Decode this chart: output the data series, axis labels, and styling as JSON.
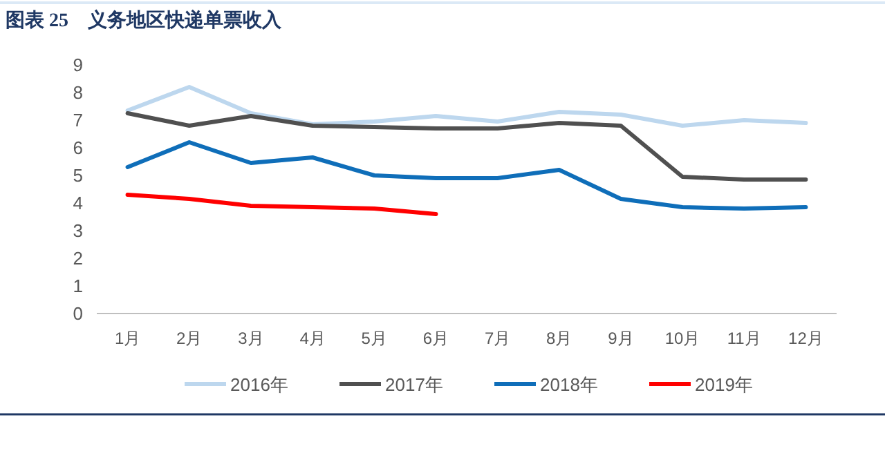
{
  "chart_data": {
    "type": "line",
    "title": "图表 25　义务地区快递单票收入",
    "categories": [
      "1月",
      "2月",
      "3月",
      "4月",
      "5月",
      "6月",
      "7月",
      "8月",
      "9月",
      "10月",
      "11月",
      "12月"
    ],
    "series": [
      {
        "name": "2016年",
        "color": "#bdd7ee",
        "values": [
          7.35,
          8.2,
          7.25,
          6.85,
          6.95,
          7.15,
          6.95,
          7.3,
          7.2,
          6.8,
          7.0,
          6.9
        ]
      },
      {
        "name": "2017年",
        "color": "#505050",
        "values": [
          7.25,
          6.8,
          7.15,
          6.8,
          6.75,
          6.7,
          6.7,
          6.9,
          6.8,
          4.95,
          4.85,
          4.85
        ]
      },
      {
        "name": "2018年",
        "color": "#0f6eb9",
        "values": [
          5.3,
          6.2,
          5.45,
          5.65,
          5.0,
          4.9,
          4.9,
          5.2,
          4.15,
          3.85,
          3.8,
          3.85
        ]
      },
      {
        "name": "2019年",
        "color": "#ff0000",
        "values": [
          4.3,
          4.15,
          3.9,
          3.85,
          3.8,
          3.6,
          null,
          null,
          null,
          null,
          null,
          null
        ]
      }
    ],
    "ylim": [
      0,
      9
    ],
    "yticks": [
      0,
      1,
      2,
      3,
      4,
      5,
      6,
      7,
      8,
      9
    ],
    "grid": false,
    "legend": "bottom",
    "marker": "none",
    "line_style": "solid"
  }
}
